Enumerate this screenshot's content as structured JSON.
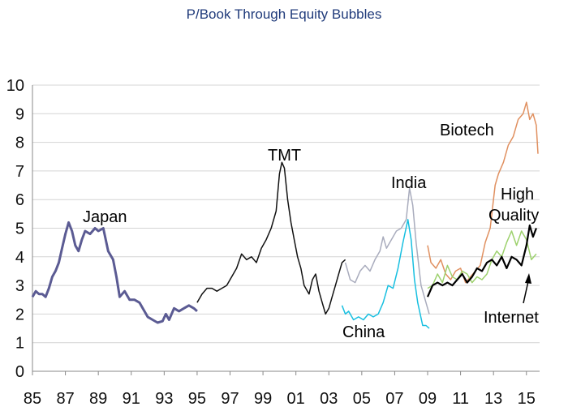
{
  "title": "P/Book Through Equity Bubbles",
  "chart_data": {
    "type": "line",
    "title": "P/Book Through Equity Bubbles",
    "xlabel": "",
    "ylabel": "",
    "xlim": [
      1985,
      2015.8
    ],
    "ylim": [
      0,
      10
    ],
    "yticks": [
      "0",
      "1",
      "2",
      "3",
      "4",
      "5",
      "6",
      "7",
      "8",
      "9",
      "10"
    ],
    "xticks": [
      {
        "label": "85",
        "x": 1985
      },
      {
        "label": "87",
        "x": 1987
      },
      {
        "label": "89",
        "x": 1989
      },
      {
        "label": "91",
        "x": 1991
      },
      {
        "label": "93",
        "x": 1993
      },
      {
        "label": "95",
        "x": 1995
      },
      {
        "label": "97",
        "x": 1997
      },
      {
        "label": "99",
        "x": 1999
      },
      {
        "label": "01",
        "x": 2001
      },
      {
        "label": "03",
        "x": 2003
      },
      {
        "label": "05",
        "x": 2005
      },
      {
        "label": "07",
        "x": 2007
      },
      {
        "label": "09",
        "x": 2009
      },
      {
        "label": "11",
        "x": 2011
      },
      {
        "label": "13",
        "x": 2013
      },
      {
        "label": "15",
        "x": 2015
      }
    ],
    "grid": "horizontal",
    "legend": "none",
    "series": [
      {
        "name": "Japan",
        "color": "#5b5b93",
        "x": [
          1985.0,
          1985.2,
          1985.4,
          1985.6,
          1985.8,
          1986.0,
          1986.2,
          1986.4,
          1986.6,
          1986.8,
          1987.0,
          1987.2,
          1987.4,
          1987.6,
          1987.8,
          1988.0,
          1988.2,
          1988.5,
          1988.8,
          1989.0,
          1989.3,
          1989.6,
          1989.9,
          1990.1,
          1990.3,
          1990.6,
          1990.9,
          1991.2,
          1991.5,
          1991.8,
          1992.0,
          1992.3,
          1992.6,
          1992.9,
          1993.1,
          1993.3,
          1993.6,
          1993.9,
          1994.2,
          1994.5,
          1994.8,
          1995.0
        ],
        "y": [
          2.6,
          2.8,
          2.7,
          2.7,
          2.6,
          2.9,
          3.3,
          3.5,
          3.8,
          4.3,
          4.8,
          5.2,
          4.9,
          4.4,
          4.2,
          4.6,
          4.9,
          4.8,
          5.0,
          4.9,
          5.0,
          4.2,
          3.9,
          3.3,
          2.6,
          2.8,
          2.5,
          2.5,
          2.4,
          2.1,
          1.9,
          1.8,
          1.7,
          1.75,
          2.0,
          1.8,
          2.2,
          2.1,
          2.2,
          2.3,
          2.2,
          2.1
        ]
      },
      {
        "name": "TMT",
        "color": "#111111",
        "x": [
          1995.0,
          1995.3,
          1995.6,
          1995.9,
          1996.2,
          1996.5,
          1996.8,
          1997.1,
          1997.4,
          1997.7,
          1998.0,
          1998.3,
          1998.6,
          1998.9,
          1999.2,
          1999.5,
          1999.8,
          2000.0,
          2000.15,
          2000.3,
          2000.5,
          2000.7,
          2000.9,
          2001.1,
          2001.3,
          2001.5,
          2001.8,
          2002.0,
          2002.2,
          2002.4,
          2002.6,
          2002.8,
          2003.0,
          2003.2,
          2003.4,
          2003.6,
          2003.8,
          2004.0
        ],
        "y": [
          2.4,
          2.7,
          2.9,
          2.9,
          2.8,
          2.9,
          3.0,
          3.3,
          3.6,
          4.1,
          3.9,
          4.0,
          3.8,
          4.3,
          4.6,
          5.0,
          5.6,
          6.9,
          7.3,
          7.1,
          6.0,
          5.2,
          4.6,
          4.0,
          3.6,
          3.0,
          2.7,
          3.2,
          3.4,
          2.8,
          2.4,
          2.0,
          2.2,
          2.6,
          3.0,
          3.4,
          3.8,
          3.9
        ]
      },
      {
        "name": "India",
        "color": "#a9acbd",
        "x": [
          2004.0,
          2004.3,
          2004.6,
          2004.9,
          2005.2,
          2005.5,
          2005.8,
          2006.1,
          2006.3,
          2006.5,
          2006.8,
          2007.1,
          2007.4,
          2007.7,
          2007.9,
          2008.1,
          2008.3,
          2008.6,
          2008.9,
          2009.1
        ],
        "y": [
          3.8,
          3.2,
          3.1,
          3.5,
          3.7,
          3.5,
          3.9,
          4.2,
          4.7,
          4.3,
          4.6,
          4.9,
          5.0,
          5.3,
          6.4,
          5.8,
          4.5,
          3.0,
          2.4,
          2.0
        ]
      },
      {
        "name": "China",
        "color": "#17bfe0",
        "x": [
          2003.8,
          2004.0,
          2004.2,
          2004.5,
          2004.8,
          2005.1,
          2005.4,
          2005.7,
          2006.0,
          2006.3,
          2006.6,
          2006.9,
          2007.2,
          2007.5,
          2007.8,
          2008.0,
          2008.2,
          2008.4,
          2008.7,
          2008.9,
          2009.1
        ],
        "y": [
          2.3,
          2.0,
          2.1,
          1.8,
          1.9,
          1.8,
          2.0,
          1.9,
          2.0,
          2.4,
          3.0,
          2.9,
          3.6,
          4.5,
          5.3,
          4.6,
          3.2,
          2.4,
          1.6,
          1.6,
          1.5
        ]
      },
      {
        "name": "Biotech",
        "color": "#e09060",
        "x": [
          2009.0,
          2009.2,
          2009.5,
          2009.8,
          2010.1,
          2010.4,
          2010.7,
          2011.0,
          2011.3,
          2011.6,
          2011.9,
          2012.2,
          2012.5,
          2012.8,
          2013.1,
          2013.3,
          2013.6,
          2013.9,
          2014.2,
          2014.5,
          2014.8,
          2015.0,
          2015.2,
          2015.4,
          2015.6,
          2015.7
        ],
        "y": [
          4.4,
          3.8,
          3.6,
          3.9,
          3.4,
          3.2,
          3.5,
          3.6,
          3.1,
          3.3,
          3.5,
          3.7,
          4.5,
          5.0,
          6.5,
          6.9,
          7.3,
          7.9,
          8.2,
          8.8,
          9.0,
          9.4,
          8.8,
          9.0,
          8.6,
          7.6
        ]
      },
      {
        "name": "High Quality",
        "color": "#9dd16d",
        "x": [
          2009.0,
          2009.3,
          2009.6,
          2009.9,
          2010.2,
          2010.5,
          2010.8,
          2011.1,
          2011.4,
          2011.7,
          2012.0,
          2012.3,
          2012.6,
          2012.9,
          2013.2,
          2013.5,
          2013.8,
          2014.1,
          2014.4,
          2014.7,
          2015.0,
          2015.3,
          2015.6
        ],
        "y": [
          2.9,
          3.0,
          3.4,
          3.1,
          3.7,
          3.3,
          3.2,
          3.5,
          3.4,
          3.1,
          3.3,
          3.2,
          3.4,
          3.9,
          4.2,
          4.0,
          4.5,
          4.9,
          4.4,
          4.9,
          4.6,
          3.9,
          4.1
        ]
      },
      {
        "name": "Internet",
        "color": "#000000",
        "x": [
          2009.0,
          2009.3,
          2009.6,
          2009.9,
          2010.2,
          2010.5,
          2010.8,
          2011.1,
          2011.4,
          2011.7,
          2012.0,
          2012.3,
          2012.6,
          2012.9,
          2013.2,
          2013.5,
          2013.8,
          2014.1,
          2014.4,
          2014.7,
          2015.0,
          2015.2,
          2015.4,
          2015.6
        ],
        "y": [
          2.6,
          3.0,
          3.1,
          3.0,
          3.1,
          3.0,
          3.2,
          3.4,
          3.1,
          3.3,
          3.6,
          3.5,
          3.8,
          3.9,
          3.7,
          4.0,
          3.6,
          4.0,
          3.9,
          3.7,
          4.4,
          5.1,
          4.7,
          5.0
        ]
      }
    ]
  },
  "annotations": {
    "japan": "Japan",
    "tmt": "TMT",
    "india": "India",
    "china": "China",
    "biotech": "Biotech",
    "high": "High",
    "quality": "Quality",
    "internet": "Internet"
  }
}
